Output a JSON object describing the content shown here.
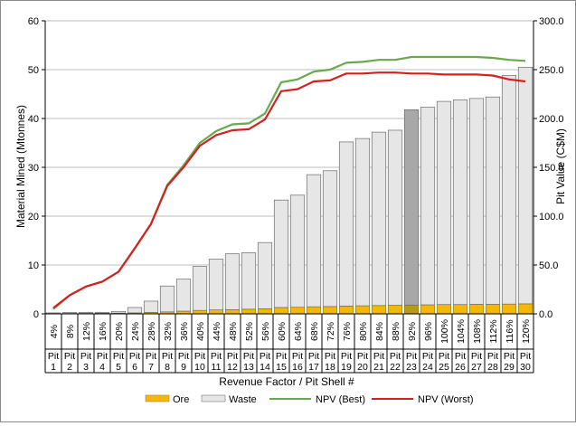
{
  "chart_data": {
    "type": "bar",
    "stacked": true,
    "xlabel": "Revenue Factor / Pit Shell #",
    "ylabel": "Material Mined (Mtonnes)",
    "y2label": "Pit Value (C$M)",
    "ylim": [
      0,
      60
    ],
    "y2lim": [
      0,
      300
    ],
    "yticks": [
      "0",
      "10",
      "20",
      "30",
      "40",
      "50",
      "60"
    ],
    "y2ticks": [
      "0.0",
      "50.0",
      "100.0",
      "150.0",
      "200.0",
      "250.0",
      "300.0"
    ],
    "grid": true,
    "legend_position": "bottom",
    "highlighted_shell": 23,
    "categories": [
      [
        "4%",
        "Pit",
        "1"
      ],
      [
        "8%",
        "Pit",
        "2"
      ],
      [
        "12%",
        "Pit",
        "3"
      ],
      [
        "16%",
        "Pit",
        "4"
      ],
      [
        "20%",
        "Pit",
        "5"
      ],
      [
        "24%",
        "Pit",
        "6"
      ],
      [
        "28%",
        "Pit",
        "7"
      ],
      [
        "32%",
        "Pit",
        "8"
      ],
      [
        "36%",
        "Pit",
        "9"
      ],
      [
        "40%",
        "Pit",
        "10"
      ],
      [
        "44%",
        "Pit",
        "11"
      ],
      [
        "48%",
        "Pit",
        "12"
      ],
      [
        "52%",
        "Pit",
        "13"
      ],
      [
        "56%",
        "Pit",
        "14"
      ],
      [
        "60%",
        "Pit",
        "15"
      ],
      [
        "64%",
        "Pit",
        "16"
      ],
      [
        "68%",
        "Pit",
        "17"
      ],
      [
        "72%",
        "Pit",
        "18"
      ],
      [
        "76%",
        "Pit",
        "19"
      ],
      [
        "80%",
        "Pit",
        "20"
      ],
      [
        "84%",
        "Pit",
        "21"
      ],
      [
        "88%",
        "Pit",
        "22"
      ],
      [
        "92%",
        "Pit",
        "23"
      ],
      [
        "96%",
        "Pit",
        "24"
      ],
      [
        "100%",
        "Pit",
        "25"
      ],
      [
        "104%",
        "Pit",
        "26"
      ],
      [
        "108%",
        "Pit",
        "27"
      ],
      [
        "112%",
        "Pit",
        "28"
      ],
      [
        "116%",
        "Pit",
        "29"
      ],
      [
        "120%",
        "Pit",
        "30"
      ]
    ],
    "series": [
      {
        "name": "Ore",
        "type": "bar",
        "axis": "left",
        "color": "#f5b800",
        "values": [
          0.05,
          0.08,
          0.1,
          0.12,
          0.15,
          0.2,
          0.3,
          0.4,
          0.55,
          0.7,
          0.8,
          0.85,
          0.95,
          1.05,
          1.3,
          1.35,
          1.45,
          1.5,
          1.6,
          1.65,
          1.7,
          1.75,
          1.8,
          1.85,
          1.9,
          1.9,
          1.95,
          1.95,
          2.0,
          2.05
        ]
      },
      {
        "name": "Waste",
        "type": "bar",
        "axis": "left",
        "color": "#e6e6e6",
        "values": [
          0.15,
          0.22,
          0.2,
          0.18,
          0.35,
          1.1,
          2.3,
          5.3,
          6.55,
          9.0,
          10.4,
          11.45,
          11.55,
          13.55,
          22.0,
          22.95,
          27.05,
          27.8,
          33.6,
          34.25,
          35.5,
          35.85,
          40.0,
          40.45,
          41.6,
          41.9,
          42.15,
          42.45,
          46.8,
          48.45
        ]
      },
      {
        "name": "NPV (Best)",
        "type": "line",
        "axis": "right",
        "color": "#6aa84f",
        "values": [
          5,
          19,
          28,
          33,
          43,
          67,
          92,
          132,
          152,
          175,
          187,
          194,
          195,
          205,
          237,
          240,
          248,
          250,
          257,
          258,
          260,
          260,
          263,
          263,
          263,
          263,
          263,
          262,
          260,
          259
        ]
      },
      {
        "name": "NPV (Worst)",
        "type": "line",
        "axis": "right",
        "color": "#d42020",
        "values": [
          6,
          19,
          28,
          33,
          43,
          67,
          92,
          131,
          150,
          172,
          183,
          188,
          189,
          199,
          228,
          230,
          238,
          239,
          246,
          246,
          247,
          247,
          246,
          246,
          245,
          245,
          245,
          244,
          240,
          238
        ]
      }
    ]
  }
}
